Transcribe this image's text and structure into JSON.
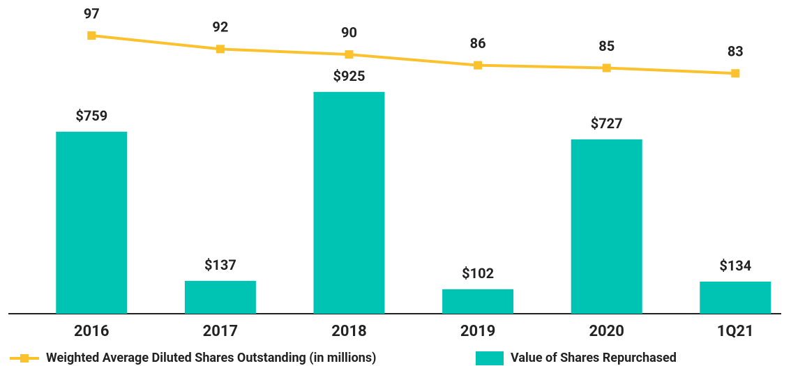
{
  "chart_data": {
    "type": "bar",
    "categories": [
      "2016",
      "2017",
      "2018",
      "2019",
      "2020",
      "1Q21"
    ],
    "series": [
      {
        "name": "Weighted Average Diluted Shares Outstanding (in millions)",
        "type": "line",
        "axis": "y2",
        "color": "#fbc22d",
        "values": [
          97,
          92,
          90,
          86,
          85,
          83
        ]
      },
      {
        "name": "Value of Shares Repurchased",
        "type": "bar",
        "color": "#00c4b3",
        "values": [
          759,
          137,
          925,
          102,
          727,
          134
        ],
        "value_labels": [
          "$759",
          "$137",
          "$925",
          "$102",
          "$727",
          "$134"
        ]
      }
    ],
    "ylim": [
      0,
      1250
    ],
    "y2lim": [
      -6,
      105
    ]
  }
}
